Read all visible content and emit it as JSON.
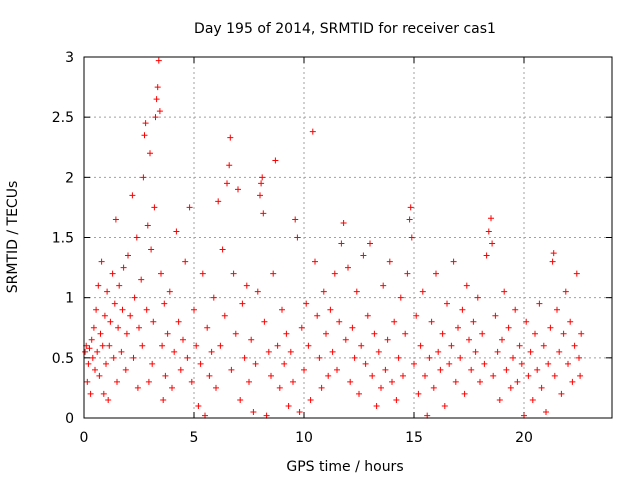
{
  "chart_data": {
    "type": "scatter",
    "title": "Day 195 of 2014, SRMTID for receiver cas1",
    "xlabel": "GPS time / hours",
    "ylabel": "SRMTID / TECUs",
    "xlim": [
      0,
      24
    ],
    "ylim": [
      0,
      3
    ],
    "xticks": [
      0,
      5,
      10,
      15,
      20
    ],
    "yticks": [
      0,
      0.5,
      1,
      1.5,
      2,
      2.5,
      3
    ],
    "xtick_labels": [
      "0",
      "5",
      "10",
      "15",
      "20"
    ],
    "ytick_labels": [
      "0",
      "0.5",
      "1",
      "1.5",
      "2",
      "2.5",
      "3"
    ],
    "grid": true,
    "marker": "+",
    "color": "#ff0000",
    "series": [
      {
        "name": "SRMTID",
        "points": [
          [
            0.05,
            0.55
          ],
          [
            0.1,
            0.6
          ],
          [
            0.15,
            0.3
          ],
          [
            0.2,
            0.45
          ],
          [
            0.25,
            0.58
          ],
          [
            0.3,
            0.2
          ],
          [
            0.35,
            0.65
          ],
          [
            0.4,
            0.5
          ],
          [
            0.45,
            0.75
          ],
          [
            0.5,
            0.4
          ],
          [
            0.55,
            0.9
          ],
          [
            0.6,
            0.55
          ],
          [
            0.65,
            1.1
          ],
          [
            0.7,
            0.35
          ],
          [
            0.75,
            0.7
          ],
          [
            0.8,
            1.3
          ],
          [
            0.85,
            0.6
          ],
          [
            0.9,
            0.2
          ],
          [
            0.95,
            0.85
          ],
          [
            1.0,
            0.45
          ],
          [
            1.05,
            1.05
          ],
          [
            1.1,
            0.15
          ],
          [
            1.15,
            0.6
          ],
          [
            1.2,
            0.8
          ],
          [
            1.3,
            1.2
          ],
          [
            1.35,
            0.5
          ],
          [
            1.4,
            0.95
          ],
          [
            1.45,
            1.65
          ],
          [
            1.5,
            0.3
          ],
          [
            1.55,
            0.75
          ],
          [
            1.6,
            1.1
          ],
          [
            1.7,
            0.55
          ],
          [
            1.75,
            0.9
          ],
          [
            1.8,
            1.25
          ],
          [
            1.9,
            0.4
          ],
          [
            1.95,
            0.7
          ],
          [
            2.0,
            1.35
          ],
          [
            2.1,
            0.85
          ],
          [
            2.2,
            1.85
          ],
          [
            2.25,
            0.5
          ],
          [
            2.3,
            1.0
          ],
          [
            2.4,
            1.5
          ],
          [
            2.45,
            0.25
          ],
          [
            2.5,
            0.75
          ],
          [
            2.6,
            1.15
          ],
          [
            2.65,
            0.6
          ],
          [
            2.7,
            2.0
          ],
          [
            2.75,
            2.35
          ],
          [
            2.8,
            2.45
          ],
          [
            2.85,
            0.9
          ],
          [
            2.9,
            1.6
          ],
          [
            2.95,
            0.3
          ],
          [
            3.0,
            2.2
          ],
          [
            3.05,
            1.4
          ],
          [
            3.1,
            0.45
          ],
          [
            3.15,
            0.8
          ],
          [
            3.2,
            1.75
          ],
          [
            3.25,
            2.5
          ],
          [
            3.3,
            2.65
          ],
          [
            3.35,
            2.75
          ],
          [
            3.4,
            2.97
          ],
          [
            3.45,
            2.55
          ],
          [
            3.5,
            1.2
          ],
          [
            3.55,
            0.6
          ],
          [
            3.6,
            0.15
          ],
          [
            3.65,
            0.95
          ],
          [
            3.7,
            0.35
          ],
          [
            3.8,
            0.7
          ],
          [
            3.9,
            1.05
          ],
          [
            4.0,
            0.25
          ],
          [
            4.1,
            0.55
          ],
          [
            4.2,
            1.55
          ],
          [
            4.3,
            0.8
          ],
          [
            4.4,
            0.4
          ],
          [
            4.5,
            0.65
          ],
          [
            4.6,
            1.3
          ],
          [
            4.7,
            0.5
          ],
          [
            4.8,
            1.75
          ],
          [
            4.9,
            0.3
          ],
          [
            5.0,
            0.9
          ],
          [
            5.1,
            0.6
          ],
          [
            5.2,
            0.1
          ],
          [
            5.3,
            0.45
          ],
          [
            5.4,
            1.2
          ],
          [
            5.5,
            0.02
          ],
          [
            5.6,
            0.75
          ],
          [
            5.7,
            0.35
          ],
          [
            5.8,
            0.55
          ],
          [
            5.9,
            1.0
          ],
          [
            6.0,
            0.25
          ],
          [
            6.1,
            1.8
          ],
          [
            6.2,
            0.6
          ],
          [
            6.3,
            1.4
          ],
          [
            6.4,
            0.85
          ],
          [
            6.5,
            1.95
          ],
          [
            6.6,
            2.1
          ],
          [
            6.65,
            2.33
          ],
          [
            6.7,
            0.4
          ],
          [
            6.8,
            1.2
          ],
          [
            6.9,
            0.7
          ],
          [
            7.0,
            1.9
          ],
          [
            7.1,
            0.15
          ],
          [
            7.2,
            0.95
          ],
          [
            7.3,
            0.5
          ],
          [
            7.4,
            1.1
          ],
          [
            7.5,
            0.3
          ],
          [
            7.6,
            0.65
          ],
          [
            7.7,
            0.05
          ],
          [
            7.8,
            0.45
          ],
          [
            7.9,
            1.05
          ],
          [
            8.0,
            1.85
          ],
          [
            8.05,
            1.95
          ],
          [
            8.1,
            2.0
          ],
          [
            8.15,
            1.7
          ],
          [
            8.2,
            0.8
          ],
          [
            8.3,
            0.02
          ],
          [
            8.4,
            0.55
          ],
          [
            8.5,
            0.35
          ],
          [
            8.6,
            1.2
          ],
          [
            8.7,
            2.14
          ],
          [
            8.8,
            0.6
          ],
          [
            8.9,
            0.25
          ],
          [
            9.0,
            0.9
          ],
          [
            9.1,
            0.45
          ],
          [
            9.2,
            0.7
          ],
          [
            9.3,
            0.1
          ],
          [
            9.4,
            0.55
          ],
          [
            9.5,
            0.3
          ],
          [
            9.6,
            1.65
          ],
          [
            9.7,
            1.5
          ],
          [
            9.8,
            0.05
          ],
          [
            9.9,
            0.75
          ],
          [
            10.0,
            0.4
          ],
          [
            10.1,
            0.95
          ],
          [
            10.2,
            0.6
          ],
          [
            10.3,
            0.15
          ],
          [
            10.4,
            2.38
          ],
          [
            10.5,
            1.3
          ],
          [
            10.6,
            0.85
          ],
          [
            10.7,
            0.5
          ],
          [
            10.8,
            0.25
          ],
          [
            10.9,
            1.05
          ],
          [
            11.0,
            0.7
          ],
          [
            11.1,
            0.35
          ],
          [
            11.2,
            0.9
          ],
          [
            11.3,
            0.55
          ],
          [
            11.4,
            1.2
          ],
          [
            11.5,
            0.4
          ],
          [
            11.6,
            0.8
          ],
          [
            11.7,
            1.45
          ],
          [
            11.8,
            1.62
          ],
          [
            11.9,
            0.65
          ],
          [
            12.0,
            1.25
          ],
          [
            12.1,
            0.3
          ],
          [
            12.2,
            0.75
          ],
          [
            12.3,
            0.5
          ],
          [
            12.4,
            1.05
          ],
          [
            12.5,
            0.2
          ],
          [
            12.6,
            0.6
          ],
          [
            12.7,
            1.35
          ],
          [
            12.8,
            0.45
          ],
          [
            12.9,
            0.85
          ],
          [
            13.0,
            1.45
          ],
          [
            13.1,
            0.35
          ],
          [
            13.2,
            0.7
          ],
          [
            13.3,
            0.1
          ],
          [
            13.4,
            0.55
          ],
          [
            13.5,
            0.25
          ],
          [
            13.6,
            1.1
          ],
          [
            13.7,
            0.4
          ],
          [
            13.8,
            0.65
          ],
          [
            13.9,
            1.3
          ],
          [
            14.0,
            0.3
          ],
          [
            14.1,
            0.8
          ],
          [
            14.2,
            0.15
          ],
          [
            14.3,
            0.5
          ],
          [
            14.4,
            1.0
          ],
          [
            14.5,
            0.35
          ],
          [
            14.6,
            0.7
          ],
          [
            14.7,
            1.2
          ],
          [
            14.8,
            1.65
          ],
          [
            14.85,
            1.75
          ],
          [
            14.9,
            1.5
          ],
          [
            15.0,
            0.45
          ],
          [
            15.1,
            0.85
          ],
          [
            15.2,
            0.2
          ],
          [
            15.3,
            0.6
          ],
          [
            15.4,
            1.05
          ],
          [
            15.5,
            0.35
          ],
          [
            15.6,
            0.02
          ],
          [
            15.7,
            0.5
          ],
          [
            15.8,
            0.8
          ],
          [
            15.9,
            0.25
          ],
          [
            16.0,
            1.2
          ],
          [
            16.1,
            0.55
          ],
          [
            16.2,
            0.4
          ],
          [
            16.3,
            0.7
          ],
          [
            16.4,
            0.1
          ],
          [
            16.5,
            0.95
          ],
          [
            16.6,
            0.45
          ],
          [
            16.7,
            0.6
          ],
          [
            16.8,
            1.3
          ],
          [
            16.9,
            0.3
          ],
          [
            17.0,
            0.75
          ],
          [
            17.1,
            0.5
          ],
          [
            17.2,
            0.9
          ],
          [
            17.3,
            0.2
          ],
          [
            17.4,
            1.1
          ],
          [
            17.5,
            0.65
          ],
          [
            17.6,
            0.4
          ],
          [
            17.7,
            0.8
          ],
          [
            17.8,
            0.55
          ],
          [
            17.9,
            1.0
          ],
          [
            18.0,
            0.3
          ],
          [
            18.1,
            0.7
          ],
          [
            18.2,
            0.45
          ],
          [
            18.3,
            1.35
          ],
          [
            18.4,
            1.55
          ],
          [
            18.5,
            1.66
          ],
          [
            18.55,
            1.45
          ],
          [
            18.6,
            0.35
          ],
          [
            18.7,
            0.85
          ],
          [
            18.8,
            0.55
          ],
          [
            18.9,
            0.15
          ],
          [
            19.0,
            0.65
          ],
          [
            19.1,
            1.05
          ],
          [
            19.2,
            0.4
          ],
          [
            19.3,
            0.75
          ],
          [
            19.4,
            0.25
          ],
          [
            19.5,
            0.5
          ],
          [
            19.6,
            0.9
          ],
          [
            19.7,
            0.3
          ],
          [
            19.8,
            0.6
          ],
          [
            19.9,
            0.45
          ],
          [
            20.0,
            0.02
          ],
          [
            20.1,
            0.8
          ],
          [
            20.2,
            0.35
          ],
          [
            20.3,
            0.55
          ],
          [
            20.4,
            0.15
          ],
          [
            20.5,
            0.7
          ],
          [
            20.6,
            0.4
          ],
          [
            20.7,
            0.95
          ],
          [
            20.8,
            0.25
          ],
          [
            20.9,
            0.6
          ],
          [
            21.0,
            0.05
          ],
          [
            21.1,
            0.45
          ],
          [
            21.2,
            0.75
          ],
          [
            21.3,
            1.3
          ],
          [
            21.35,
            1.37
          ],
          [
            21.4,
            0.35
          ],
          [
            21.5,
            0.9
          ],
          [
            21.6,
            0.55
          ],
          [
            21.7,
            0.2
          ],
          [
            21.8,
            0.7
          ],
          [
            21.9,
            1.05
          ],
          [
            22.0,
            0.45
          ],
          [
            22.1,
            0.8
          ],
          [
            22.2,
            0.3
          ],
          [
            22.3,
            0.6
          ],
          [
            22.4,
            1.2
          ],
          [
            22.5,
            0.5
          ],
          [
            22.55,
            0.35
          ],
          [
            22.6,
            0.7
          ]
        ]
      }
    ]
  }
}
